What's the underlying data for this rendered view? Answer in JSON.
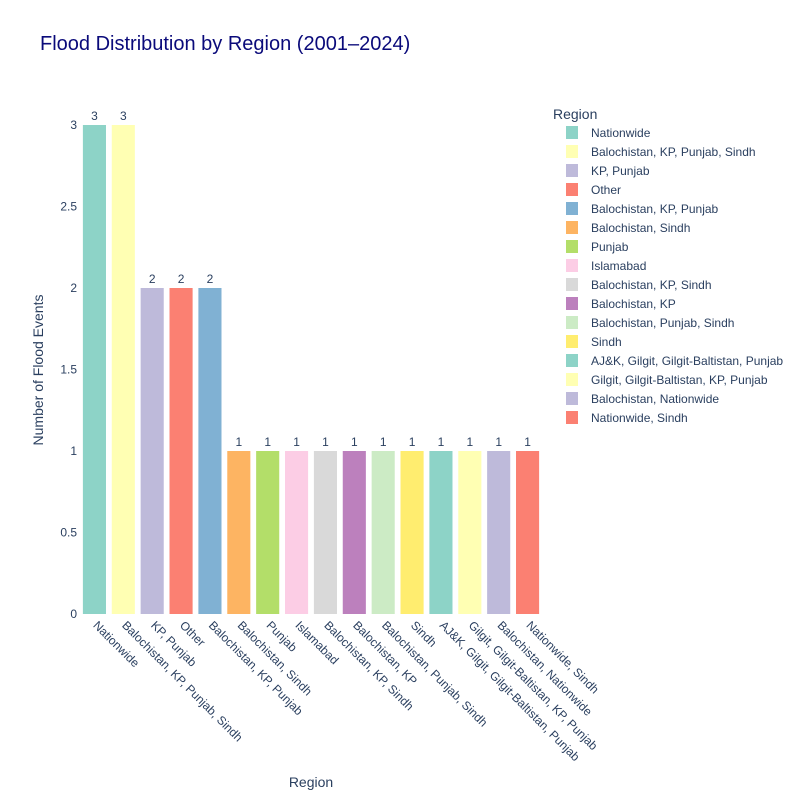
{
  "chart_data": {
    "type": "bar",
    "title": "Flood Distribution by Region (2001–2024)",
    "xlabel": "Region",
    "ylabel": "Number of Flood Events",
    "ylim": [
      0,
      3
    ],
    "yticks": [
      {
        "value": 0,
        "label": "0"
      },
      {
        "value": 0.5,
        "label": "0.5"
      },
      {
        "value": 1,
        "label": "1"
      },
      {
        "value": 1.5,
        "label": "1.5"
      },
      {
        "value": 2,
        "label": "2"
      },
      {
        "value": 2.5,
        "label": "2.5"
      },
      {
        "value": 3,
        "label": "3"
      }
    ],
    "legend_title": "Region",
    "legend_position": "right",
    "bars": [
      {
        "category": "Nationwide",
        "value": 3,
        "label": "3",
        "color": "#8dd3c7"
      },
      {
        "category": "Balochistan, KP, Punjab, Sindh",
        "value": 3,
        "label": "3",
        "color": "#ffffb3"
      },
      {
        "category": "KP, Punjab",
        "value": 2,
        "label": "2",
        "color": "#bebada"
      },
      {
        "category": "Other",
        "value": 2,
        "label": "2",
        "color": "#fb8072"
      },
      {
        "category": "Balochistan, KP, Punjab",
        "value": 2,
        "label": "2",
        "color": "#80b1d3"
      },
      {
        "category": "Balochistan, Sindh",
        "value": 1,
        "label": "1",
        "color": "#fdb462"
      },
      {
        "category": "Punjab",
        "value": 1,
        "label": "1",
        "color": "#b3de69"
      },
      {
        "category": "Islamabad",
        "value": 1,
        "label": "1",
        "color": "#fccde5"
      },
      {
        "category": "Balochistan, KP, Sindh",
        "value": 1,
        "label": "1",
        "color": "#d9d9d9"
      },
      {
        "category": "Balochistan, KP",
        "value": 1,
        "label": "1",
        "color": "#bc80bd"
      },
      {
        "category": "Balochistan, Punjab, Sindh",
        "value": 1,
        "label": "1",
        "color": "#ccebc5"
      },
      {
        "category": "Sindh",
        "value": 1,
        "label": "1",
        "color": "#ffed6f"
      },
      {
        "category": "AJ&K, Gilgit, Gilgit-Baltistan, Punjab",
        "value": 1,
        "label": "1",
        "color": "#8dd3c7"
      },
      {
        "category": "Gilgit, Gilgit-Baltistan, KP, Punjab",
        "value": 1,
        "label": "1",
        "color": "#ffffb3"
      },
      {
        "category": "Balochistan, Nationwide",
        "value": 1,
        "label": "1",
        "color": "#bebada"
      },
      {
        "category": "Nationwide, Sindh",
        "value": 1,
        "label": "1",
        "color": "#fb8072"
      }
    ]
  }
}
